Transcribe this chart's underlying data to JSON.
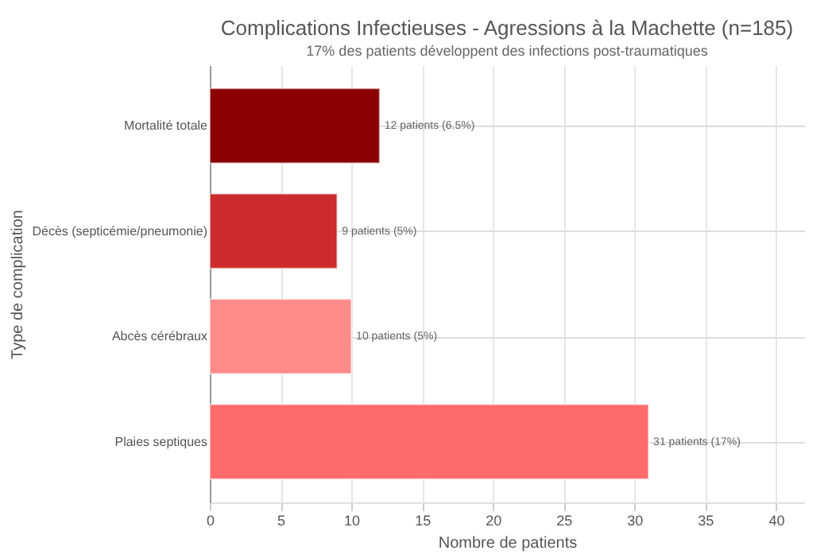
{
  "chart_data": {
    "type": "bar",
    "orientation": "horizontal",
    "title": "Complications Infectieuses - Agressions à la Machette (n=185)",
    "subtitle": "17% des patients développent des infections post-traumatiques",
    "xlabel": "Nombre de patients",
    "ylabel": "Type de complication",
    "categories": [
      "Mortalité totale",
      "Décès (septicémie/pneumonie)",
      "Abcès cérébraux",
      "Plaies septiques"
    ],
    "values": [
      12,
      9,
      10,
      31
    ],
    "colors": [
      "#8b0000",
      "#cd2c2c",
      "#ff8a8a",
      "#ff6b6b"
    ],
    "value_labels": [
      "12 patients (6.5%)",
      "9 patients (5%)",
      "10 patients (5%)",
      "31 patients (17%)"
    ],
    "xlim": [
      0,
      42
    ],
    "xticks": [
      0,
      5,
      10,
      15,
      20,
      25,
      30,
      35,
      40
    ],
    "grid": true
  }
}
